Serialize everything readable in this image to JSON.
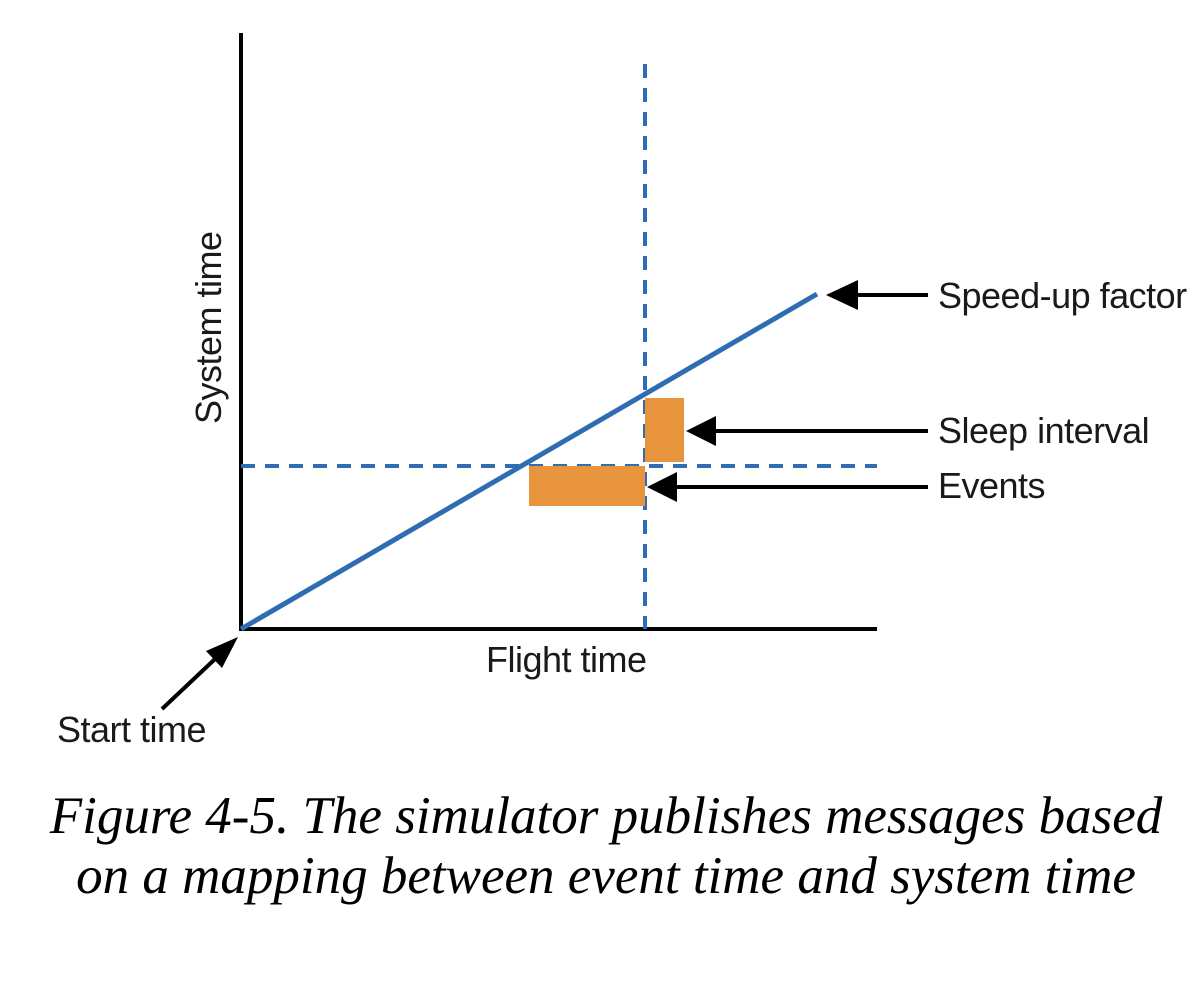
{
  "diagram": {
    "y_axis_label": "System time",
    "x_axis_label": "Flight time",
    "start_time_label": "Start time",
    "speedup_label": "Speed-up factor",
    "sleep_label": "Sleep interval",
    "events_label": "Events",
    "colors": {
      "axis": "#000000",
      "line": "#2f6db3",
      "dashed": "#2f6db3",
      "bars": "#e8943c",
      "text": "#1a1a1a"
    }
  },
  "caption": {
    "figure_number": "Figure 4-5.",
    "text": "The simulator publishes messages based on a mapping between event time and system time"
  }
}
